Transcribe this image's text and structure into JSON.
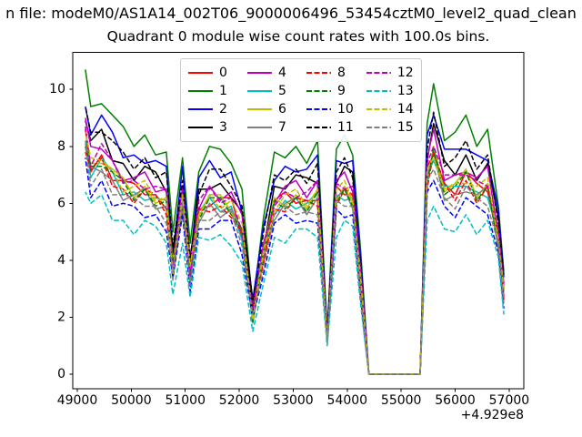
{
  "figure": {
    "title_file_line": "n file: modeM0/AS1A14_002T06_9000006496_53454cztM0_level2_quad_clean",
    "axes_title": "Quadrant 0 module wise count rates with 100.0s bins."
  },
  "chart_data": {
    "type": "line",
    "title": "Quadrant 0 module wise count rates with 100.0s bins.",
    "xlabel": "",
    "ylabel": "",
    "bin_seconds": 100.0,
    "x_offset_label": "+4.929e8",
    "xlim": [
      48916,
      57271
    ],
    "ylim": [
      -0.52,
      11.3
    ],
    "xticks": [
      49000,
      50000,
      51000,
      52000,
      53000,
      54000,
      55000,
      56000,
      57000
    ],
    "yticks": [
      0,
      2,
      4,
      6,
      8,
      10
    ],
    "grid": false,
    "legend_position": "upper center",
    "legend_columns": 4,
    "x": [
      49150,
      49250,
      49450,
      49650,
      49850,
      50050,
      50250,
      50450,
      50650,
      50770,
      50950,
      51090,
      51250,
      51450,
      51650,
      51850,
      52050,
      52250,
      52450,
      52650,
      52850,
      53050,
      53250,
      53450,
      53630,
      53800,
      53950,
      54100,
      54250,
      54400,
      54600,
      54800,
      55000,
      55200,
      55350,
      55480,
      55600,
      55800,
      56000,
      56200,
      56400,
      56600,
      56800,
      56900
    ],
    "series": [
      {
        "name": "0",
        "color": "#ff0000",
        "dash": false,
        "values": [
          8.6,
          7.1,
          7.7,
          6.8,
          6.8,
          6.7,
          6.3,
          6.3,
          5.8,
          3.9,
          6.4,
          3.3,
          5.8,
          5.9,
          6.2,
          6.2,
          4.8,
          2.2,
          4.0,
          6.1,
          6.4,
          6.0,
          6.1,
          6.1,
          1.2,
          6.6,
          6.3,
          6.3,
          3.0,
          0,
          0,
          0,
          0,
          0,
          0,
          7.3,
          7.7,
          6.7,
          6.3,
          7.1,
          6.7,
          6.4,
          4.9,
          2.7
        ]
      },
      {
        "name": "1",
        "color": "#008000",
        "dash": false,
        "values": [
          10.7,
          9.4,
          9.5,
          9.1,
          8.7,
          8.0,
          8.4,
          7.7,
          7.8,
          5.0,
          7.6,
          4.6,
          7.1,
          8.0,
          7.9,
          7.4,
          6.5,
          2.4,
          5.5,
          7.8,
          7.6,
          8.0,
          7.4,
          8.2,
          1.5,
          7.9,
          8.4,
          7.7,
          4.3,
          0,
          0,
          0,
          0,
          0,
          0,
          8.8,
          10.2,
          8.2,
          8.5,
          9.1,
          8.0,
          8.6,
          5.9,
          3.6
        ]
      },
      {
        "name": "2",
        "color": "#0000ff",
        "dash": false,
        "values": [
          9.4,
          8.4,
          9.1,
          8.5,
          7.6,
          7.7,
          7.4,
          7.5,
          7.3,
          4.2,
          7.3,
          3.9,
          6.9,
          7.5,
          6.9,
          7.1,
          5.7,
          2.6,
          5.2,
          6.8,
          7.3,
          7.1,
          7.2,
          7.7,
          1.4,
          7.5,
          7.4,
          7.5,
          4.0,
          0,
          0,
          0,
          0,
          0,
          0,
          8.4,
          9.1,
          7.9,
          7.9,
          7.9,
          7.7,
          7.5,
          5.8,
          3.4
        ]
      },
      {
        "name": "3",
        "color": "#000000",
        "dash": false,
        "values": [
          8.9,
          8.2,
          8.6,
          7.5,
          7.4,
          6.8,
          7.3,
          7.1,
          6.4,
          4.2,
          6.5,
          4.0,
          6.5,
          6.5,
          6.7,
          6.2,
          5.7,
          2.6,
          4.4,
          6.6,
          6.5,
          7.0,
          6.9,
          6.7,
          1.3,
          6.7,
          7.3,
          7.1,
          3.3,
          0,
          0,
          0,
          0,
          0,
          0,
          7.5,
          8.8,
          7.5,
          7.0,
          7.7,
          6.8,
          7.4,
          5.5,
          3.0
        ]
      },
      {
        "name": "4",
        "color": "#bf00bf",
        "dash": false,
        "values": [
          9.0,
          8.0,
          7.9,
          7.5,
          6.8,
          6.9,
          7.1,
          6.4,
          6.5,
          3.7,
          6.6,
          4.0,
          5.8,
          6.6,
          6.1,
          6.4,
          5.6,
          2.0,
          4.6,
          6.0,
          6.6,
          6.8,
          6.2,
          6.8,
          1.3,
          6.8,
          7.1,
          6.4,
          3.5,
          0,
          0,
          0,
          0,
          0,
          0,
          7.6,
          8.6,
          6.8,
          7.0,
          7.1,
          6.9,
          7.3,
          4.9,
          3.2
        ]
      },
      {
        "name": "5",
        "color": "#00bfbf",
        "dash": false,
        "values": [
          8.2,
          6.9,
          7.6,
          7.1,
          6.3,
          6.4,
          6.1,
          6.2,
          6.1,
          3.4,
          6.1,
          3.2,
          5.7,
          6.2,
          5.7,
          5.9,
          4.7,
          2.2,
          4.4,
          5.6,
          6.1,
          5.8,
          6.0,
          6.4,
          1.2,
          6.3,
          6.1,
          6.2,
          3.4,
          0,
          0,
          0,
          0,
          0,
          0,
          7.0,
          7.5,
          6.6,
          6.6,
          6.6,
          6.4,
          6.2,
          4.9,
          2.9
        ]
      },
      {
        "name": "6",
        "color": "#bfbf00",
        "dash": false,
        "values": [
          8.1,
          7.4,
          7.4,
          7.2,
          6.9,
          6.2,
          6.6,
          6.0,
          6.2,
          4.0,
          5.9,
          3.6,
          5.5,
          6.3,
          6.3,
          5.7,
          5.1,
          1.9,
          4.4,
          6.2,
          5.9,
          6.3,
          5.8,
          6.5,
          1.2,
          6.1,
          6.6,
          6.0,
          3.4,
          0,
          0,
          0,
          0,
          0,
          0,
          6.8,
          8.0,
          6.4,
          6.7,
          7.2,
          6.2,
          6.7,
          4.6,
          3.0
        ]
      },
      {
        "name": "7",
        "color": "#808080",
        "dash": false,
        "values": [
          8.1,
          7.3,
          7.1,
          6.8,
          6.1,
          6.3,
          6.5,
          5.8,
          5.9,
          3.3,
          6.0,
          3.6,
          5.3,
          6.0,
          5.5,
          5.8,
          5.1,
          1.8,
          4.1,
          5.4,
          6.0,
          6.2,
          5.6,
          6.2,
          1.2,
          6.2,
          6.5,
          5.8,
          3.2,
          0,
          0,
          0,
          0,
          0,
          0,
          6.9,
          7.8,
          6.1,
          6.3,
          6.4,
          6.3,
          6.6,
          4.4,
          2.9
        ]
      },
      {
        "name": "8",
        "color": "#ff0000",
        "dash": true,
        "values": [
          7.8,
          7.2,
          7.6,
          6.6,
          6.5,
          6.0,
          6.5,
          6.3,
          5.6,
          3.7,
          5.7,
          3.6,
          5.8,
          5.7,
          5.9,
          5.5,
          5.0,
          2.3,
          3.9,
          5.8,
          5.7,
          6.2,
          6.1,
          5.9,
          1.2,
          5.9,
          6.5,
          6.3,
          2.9,
          0,
          0,
          0,
          0,
          0,
          0,
          6.5,
          7.8,
          6.7,
          6.1,
          6.8,
          6.0,
          6.6,
          4.9,
          2.6
        ]
      },
      {
        "name": "9",
        "color": "#008000",
        "dash": true,
        "values": [
          8.0,
          7.3,
          7.3,
          7.1,
          6.8,
          6.1,
          6.5,
          5.9,
          6.1,
          3.9,
          5.8,
          3.6,
          5.4,
          6.2,
          6.2,
          5.6,
          5.1,
          1.8,
          4.3,
          6.1,
          5.8,
          6.2,
          5.7,
          6.4,
          1.2,
          6.0,
          6.5,
          5.9,
          3.3,
          0,
          0,
          0,
          0,
          0,
          0,
          6.7,
          7.9,
          6.3,
          6.6,
          7.1,
          6.1,
          6.6,
          4.5,
          3.0
        ]
      },
      {
        "name": "10",
        "color": "#0000ff",
        "dash": true,
        "values": [
          7.6,
          6.2,
          6.8,
          5.9,
          6.0,
          5.9,
          5.5,
          5.6,
          5.0,
          3.4,
          5.6,
          2.9,
          5.1,
          5.1,
          5.4,
          5.4,
          4.2,
          2.0,
          3.5,
          5.3,
          5.6,
          5.3,
          5.4,
          5.3,
          1.1,
          5.8,
          5.5,
          5.6,
          2.6,
          0,
          0,
          0,
          0,
          0,
          0,
          6.4,
          6.8,
          5.9,
          5.5,
          6.2,
          5.9,
          5.6,
          4.3,
          2.3
        ]
      },
      {
        "name": "11",
        "color": "#000000",
        "dash": true,
        "values": [
          9.4,
          8.5,
          8.5,
          8.2,
          7.8,
          7.2,
          7.6,
          6.9,
          7.1,
          4.5,
          6.8,
          4.1,
          6.3,
          7.2,
          7.2,
          6.6,
          5.9,
          2.2,
          5.0,
          7.0,
          6.8,
          7.2,
          6.7,
          7.4,
          1.4,
          7.1,
          7.6,
          6.9,
          3.8,
          0,
          0,
          0,
          0,
          0,
          0,
          7.9,
          9.2,
          7.3,
          7.6,
          8.2,
          7.2,
          7.7,
          5.3,
          3.5
        ]
      },
      {
        "name": "12",
        "color": "#bf00bf",
        "dash": true,
        "values": [
          8.7,
          7.3,
          8.1,
          7.5,
          6.7,
          6.8,
          6.5,
          6.6,
          6.5,
          3.7,
          6.4,
          3.4,
          6.1,
          6.6,
          6.0,
          6.2,
          5.0,
          2.3,
          4.6,
          5.9,
          6.4,
          6.2,
          6.4,
          6.8,
          1.2,
          6.7,
          6.5,
          6.6,
          3.6,
          0,
          0,
          0,
          0,
          0,
          0,
          7.4,
          8.0,
          7.0,
          7.0,
          7.0,
          6.8,
          6.6,
          5.1,
          3.1
        ]
      },
      {
        "name": "13",
        "color": "#00bfbf",
        "dash": true,
        "values": [
          6.4,
          6.0,
          6.3,
          5.4,
          5.4,
          4.9,
          5.4,
          5.2,
          4.6,
          2.8,
          4.6,
          2.7,
          4.8,
          4.7,
          4.9,
          4.5,
          3.9,
          1.5,
          3.2,
          4.8,
          4.6,
          5.1,
          5.1,
          4.8,
          1.0,
          4.8,
          5.4,
          5.2,
          2.4,
          0,
          0,
          0,
          0,
          0,
          0,
          5.4,
          5.9,
          5.1,
          5.0,
          5.6,
          4.9,
          5.4,
          4.1,
          2.1
        ]
      },
      {
        "name": "14",
        "color": "#bfbf00",
        "dash": true,
        "values": [
          8.5,
          7.6,
          7.5,
          7.2,
          6.4,
          6.6,
          6.8,
          6.1,
          6.2,
          3.5,
          6.3,
          3.8,
          5.6,
          6.3,
          5.8,
          6.1,
          5.3,
          1.9,
          4.3,
          5.7,
          6.3,
          6.5,
          5.9,
          6.5,
          1.2,
          6.5,
          6.8,
          6.1,
          3.3,
          0,
          0,
          0,
          0,
          0,
          0,
          7.2,
          7.6,
          6.5,
          6.7,
          6.7,
          6.6,
          6.9,
          4.7,
          3.0
        ]
      },
      {
        "name": "15",
        "color": "#808080",
        "dash": true,
        "values": [
          8.0,
          6.6,
          7.2,
          6.3,
          6.3,
          6.2,
          5.9,
          5.9,
          5.3,
          3.6,
          5.9,
          3.1,
          5.4,
          5.4,
          5.7,
          5.7,
          4.5,
          2.1,
          3.7,
          5.6,
          5.9,
          5.6,
          5.7,
          5.6,
          1.1,
          6.1,
          5.9,
          5.9,
          2.7,
          0,
          0,
          0,
          0,
          0,
          0,
          6.8,
          7.2,
          6.2,
          5.8,
          6.6,
          6.2,
          5.9,
          4.6,
          2.5
        ]
      }
    ]
  }
}
